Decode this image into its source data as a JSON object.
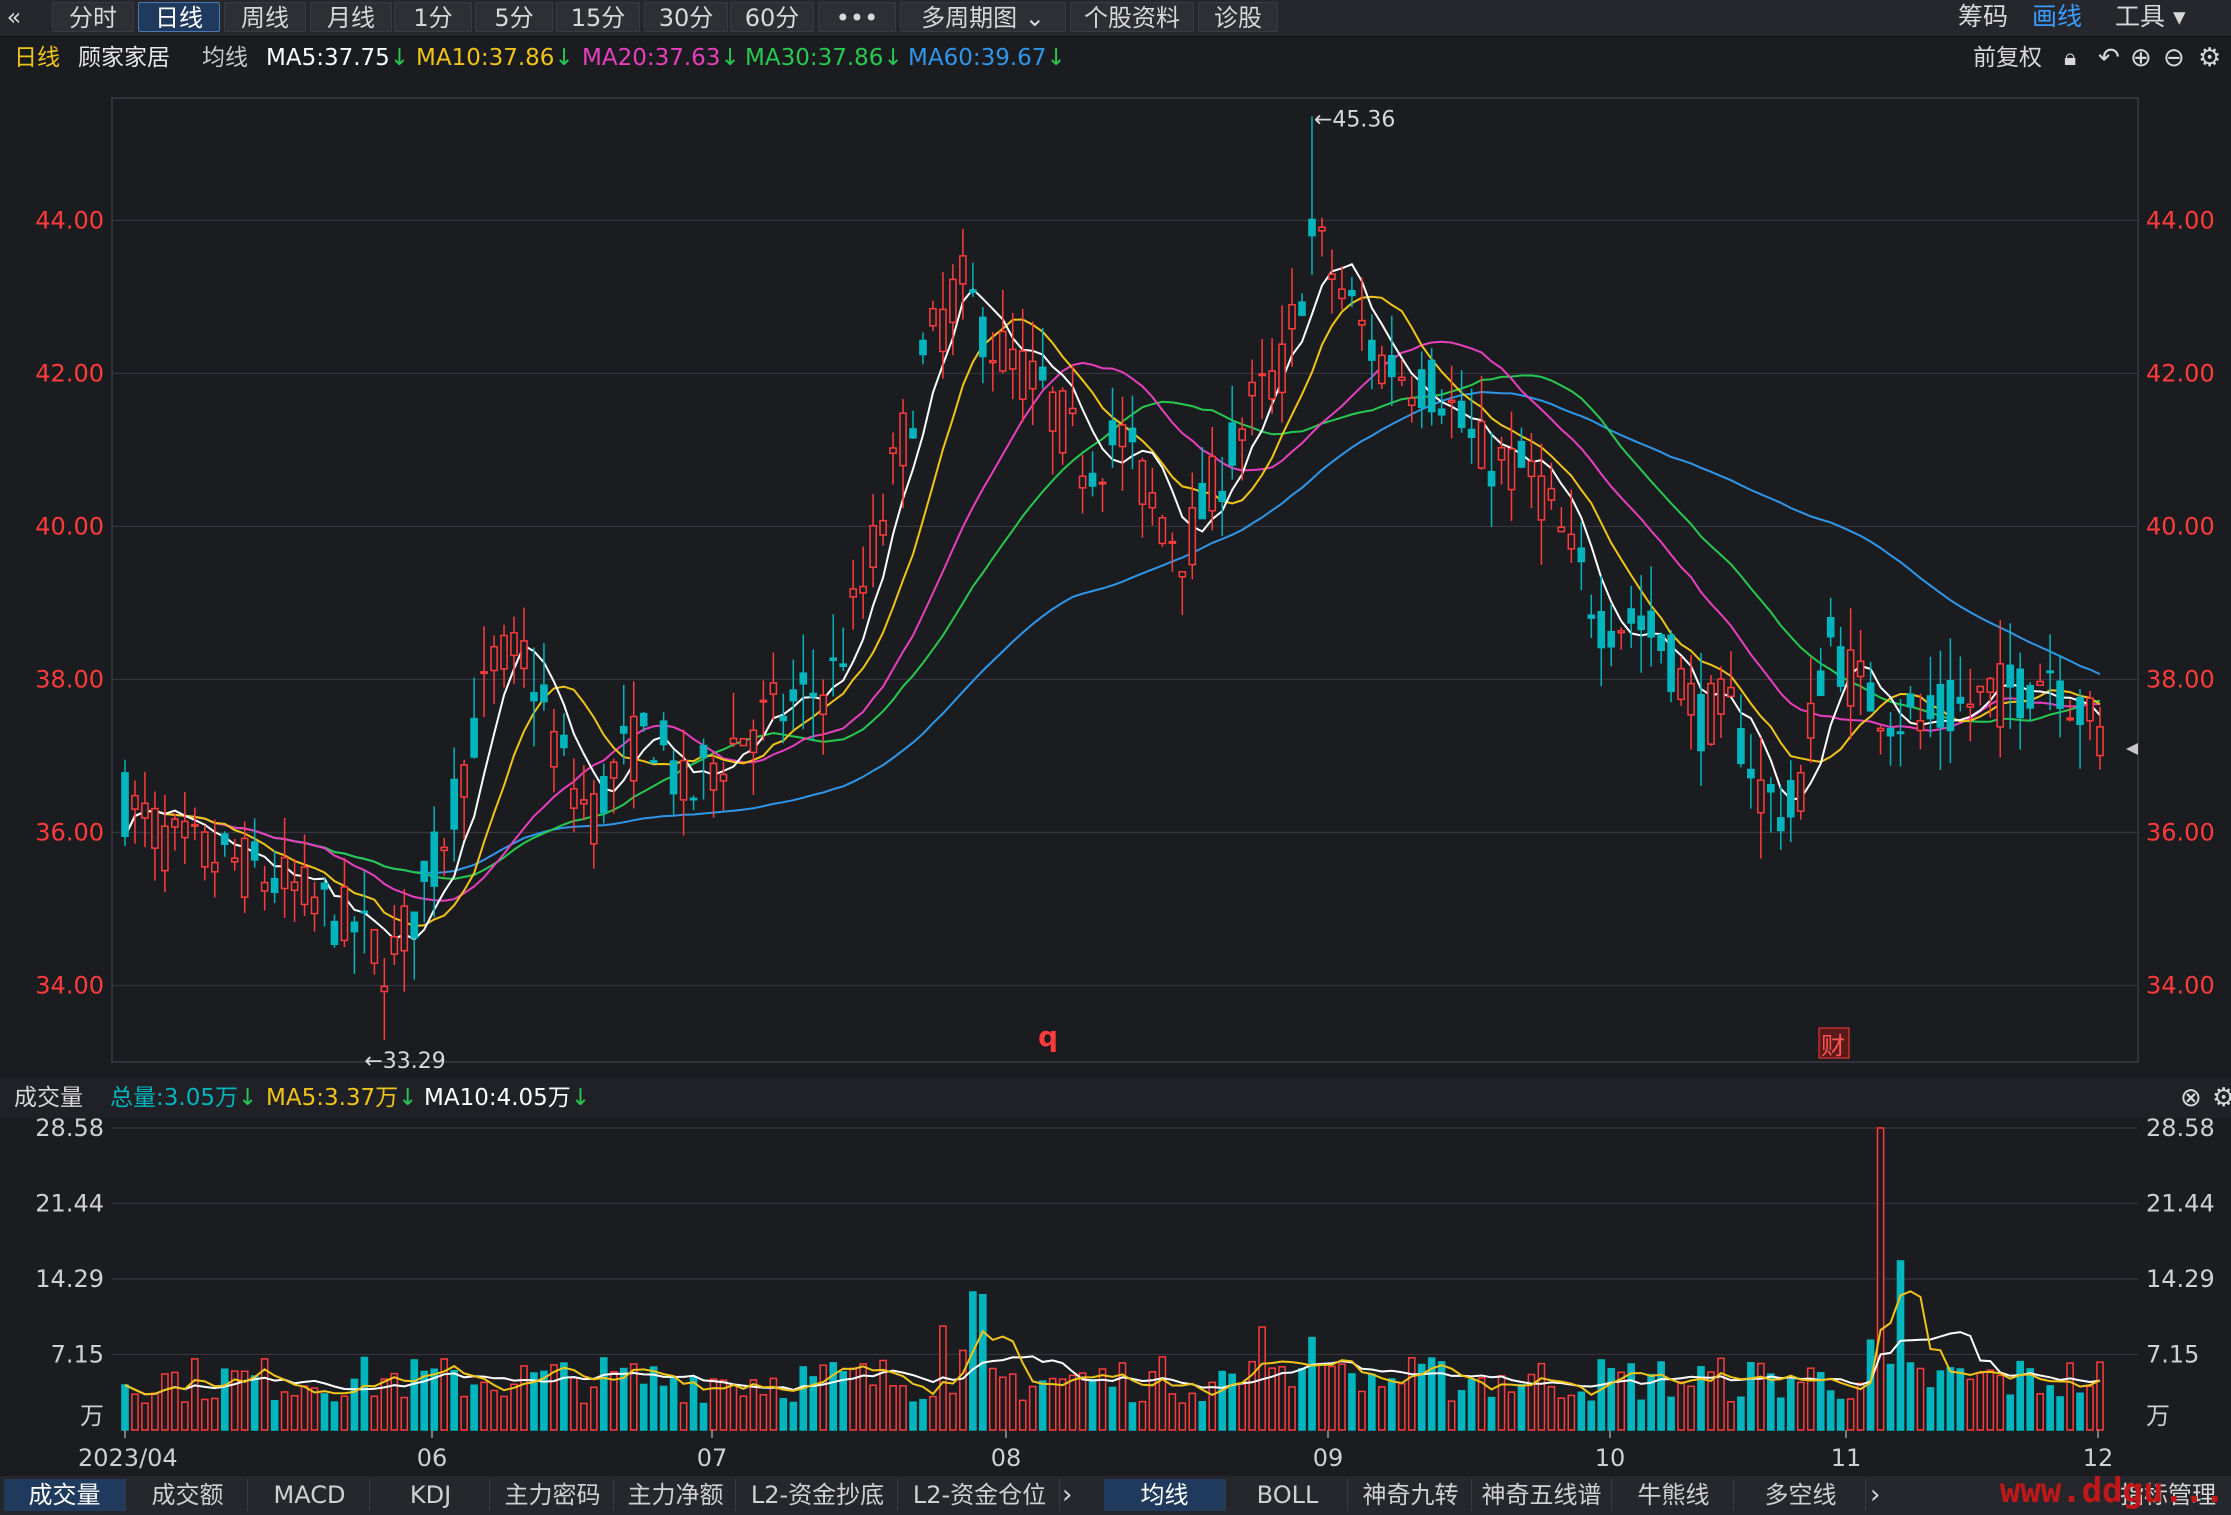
{
  "toolbar": {
    "back_icon": "double-chevron-left-icon",
    "tabs": [
      "分时",
      "日线",
      "周线",
      "月线",
      "1分",
      "5分",
      "15分",
      "30分",
      "60分",
      "•••",
      "多周期图 ⌄",
      "个股资料",
      "诊股"
    ],
    "active_tab": "日线",
    "right": [
      "筹码",
      "画线",
      "工具 ▾"
    ]
  },
  "info": {
    "period": "日线",
    "stock_name": "顾家家居",
    "ma_label": "均线",
    "ma5": "MA5:37.75",
    "ma10": "MA10:37.86",
    "ma20": "MA20:37.63",
    "ma30": "MA30:37.86",
    "ma60": "MA60:39.67",
    "down_arrow": "↓",
    "adjust": "前复权"
  },
  "colors": {
    "up": "#ff3b3b",
    "down": "#00b5bd",
    "ma5": "#ffffff",
    "ma10": "#f0c419",
    "ma20": "#e83fbe",
    "ma30": "#27c950",
    "ma60": "#2f97ea",
    "axis_red": "#ff3b3b"
  },
  "price_axis": {
    "ticks": [
      "44.00",
      "42.00",
      "40.00",
      "38.00",
      "36.00",
      "34.00"
    ]
  },
  "annotations": {
    "high": "←45.36",
    "low": "←33.29",
    "marker_q": "q",
    "marker_cai": "财"
  },
  "volume": {
    "title": "成交量",
    "total": "总量:3.05万",
    "ma5": "MA5:3.37万",
    "ma10": "MA10:4.05万",
    "ticks": [
      "28.58",
      "21.44",
      "14.29",
      "7.15",
      "万"
    ]
  },
  "x_axis": [
    "2023/04",
    "06",
    "07",
    "08",
    "09",
    "10",
    "11",
    "12"
  ],
  "bottom_tabs_left": [
    "成交量",
    "成交额",
    "MACD",
    "KDJ",
    "主力密码",
    "主力净额",
    "L2-资金抄底",
    "L2-资金仓位"
  ],
  "bottom_tabs_right": [
    "均线",
    "BOLL",
    "神奇九转",
    "神奇五线谱",
    "牛熊线",
    "多空线"
  ],
  "bottom_right_label": "指标管理",
  "watermark": "www.ddgu...",
  "chart_data": {
    "type": "candlestick",
    "title": "顾家家居 日线",
    "price_range": [
      33.0,
      45.6
    ],
    "series": [
      {
        "name": "MA5",
        "last": 37.75
      },
      {
        "name": "MA10",
        "last": 37.86
      },
      {
        "name": "MA20",
        "last": 37.63
      },
      {
        "name": "MA30",
        "last": 37.86
      },
      {
        "name": "MA60",
        "last": 39.67
      }
    ],
    "high": 45.36,
    "low": 33.29,
    "volume_unit": "万",
    "volume_range": [
      0,
      28.58
    ]
  }
}
